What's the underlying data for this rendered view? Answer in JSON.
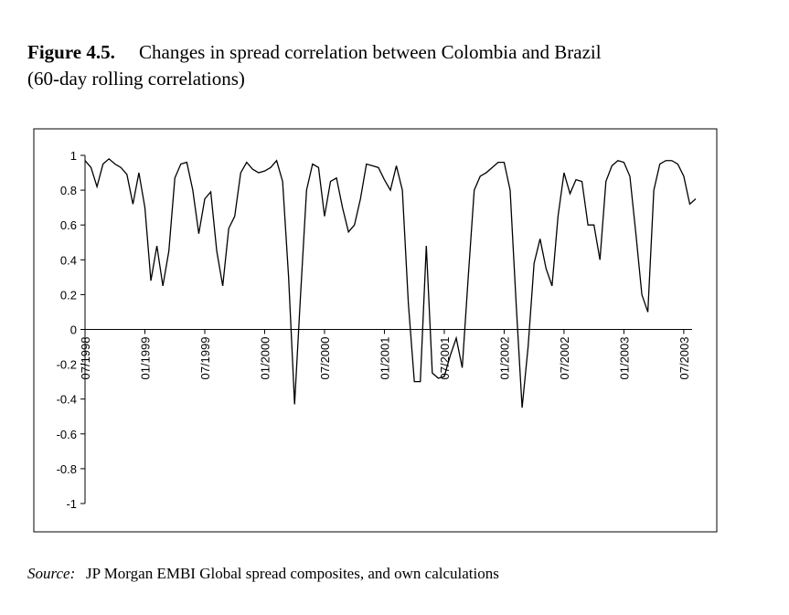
{
  "chart_data": {
    "type": "line",
    "title_label": "Figure 4.5.",
    "title": "Changes in spread correlation between Colombia and Brazil",
    "subtitle": "(60-day rolling correlations)",
    "source_label": "Source:",
    "source": "JP Morgan EMBI Global spread composites, and own calculations",
    "x": [
      1998.5,
      1998.55,
      1998.6,
      1998.65,
      1998.7,
      1998.75,
      1998.8,
      1998.85,
      1998.9,
      1998.95,
      1999.0,
      1999.05,
      1999.1,
      1999.15,
      1999.2,
      1999.25,
      1999.3,
      1999.35,
      1999.4,
      1999.45,
      1999.5,
      1999.55,
      1999.6,
      1999.65,
      1999.7,
      1999.75,
      1999.8,
      1999.85,
      1999.9,
      1999.95,
      2000.0,
      2000.05,
      2000.1,
      2000.15,
      2000.2,
      2000.25,
      2000.3,
      2000.35,
      2000.4,
      2000.45,
      2000.5,
      2000.55,
      2000.6,
      2000.65,
      2000.7,
      2000.75,
      2000.8,
      2000.85,
      2000.9,
      2000.95,
      2001.0,
      2001.05,
      2001.1,
      2001.15,
      2001.2,
      2001.25,
      2001.3,
      2001.35,
      2001.4,
      2001.45,
      2001.5,
      2001.55,
      2001.6,
      2001.65,
      2001.7,
      2001.75,
      2001.8,
      2001.85,
      2001.9,
      2001.95,
      2002.0,
      2002.05,
      2002.1,
      2002.15,
      2002.2,
      2002.25,
      2002.3,
      2002.35,
      2002.4,
      2002.45,
      2002.5,
      2002.55,
      2002.6,
      2002.65,
      2002.7,
      2002.75,
      2002.8,
      2002.85,
      2002.9,
      2002.95,
      2003.0,
      2003.05,
      2003.1,
      2003.15,
      2003.2,
      2003.25,
      2003.3,
      2003.35,
      2003.4,
      2003.45,
      2003.5,
      2003.55,
      2003.6
    ],
    "series": [
      {
        "color": "#000000",
        "values": [
          0.97,
          0.93,
          0.82,
          0.95,
          0.98,
          0.95,
          0.93,
          0.89,
          0.72,
          0.9,
          0.7,
          0.28,
          0.48,
          0.25,
          0.45,
          0.87,
          0.95,
          0.96,
          0.8,
          0.55,
          0.75,
          0.79,
          0.45,
          0.25,
          0.58,
          0.65,
          0.9,
          0.96,
          0.92,
          0.9,
          0.91,
          0.93,
          0.97,
          0.85,
          0.3,
          -0.43,
          0.2,
          0.8,
          0.95,
          0.93,
          0.65,
          0.85,
          0.87,
          0.7,
          0.56,
          0.6,
          0.75,
          0.95,
          0.94,
          0.93,
          0.86,
          0.8,
          0.94,
          0.8,
          0.15,
          -0.3,
          -0.3,
          0.48,
          -0.25,
          -0.28,
          -0.27,
          -0.15,
          -0.05,
          -0.22,
          0.3,
          0.8,
          0.88,
          0.9,
          0.93,
          0.96,
          0.96,
          0.8,
          0.15,
          -0.45,
          -0.1,
          0.38,
          0.52,
          0.35,
          0.25,
          0.65,
          0.9,
          0.78,
          0.86,
          0.85,
          0.6,
          0.6,
          0.4,
          0.85,
          0.94,
          0.97,
          0.96,
          0.88,
          0.55,
          0.2,
          0.1,
          0.8,
          0.95,
          0.97,
          0.97,
          0.95,
          0.88,
          0.72,
          0.75
        ]
      }
    ],
    "xlim": [
      1998.5,
      2003.6
    ],
    "xticks": [
      {
        "value": 1998.5,
        "label": "07/1998"
      },
      {
        "value": 1999.0,
        "label": "01/1999"
      },
      {
        "value": 1999.5,
        "label": "07/1999"
      },
      {
        "value": 2000.0,
        "label": "01/2000"
      },
      {
        "value": 2000.5,
        "label": "07/2000"
      },
      {
        "value": 2001.0,
        "label": "01/2001"
      },
      {
        "value": 2001.5,
        "label": "07/2001"
      },
      {
        "value": 2002.0,
        "label": "01/2002"
      },
      {
        "value": 2002.5,
        "label": "07/2002"
      },
      {
        "value": 2003.0,
        "label": "01/2003"
      },
      {
        "value": 2003.5,
        "label": "07/2003"
      }
    ],
    "ylim": [
      -1,
      1
    ],
    "yticks": [
      -1,
      -0.8,
      -0.6,
      -0.4,
      -0.2,
      0,
      0.2,
      0.4,
      0.6,
      0.8,
      1
    ],
    "grid": false
  }
}
